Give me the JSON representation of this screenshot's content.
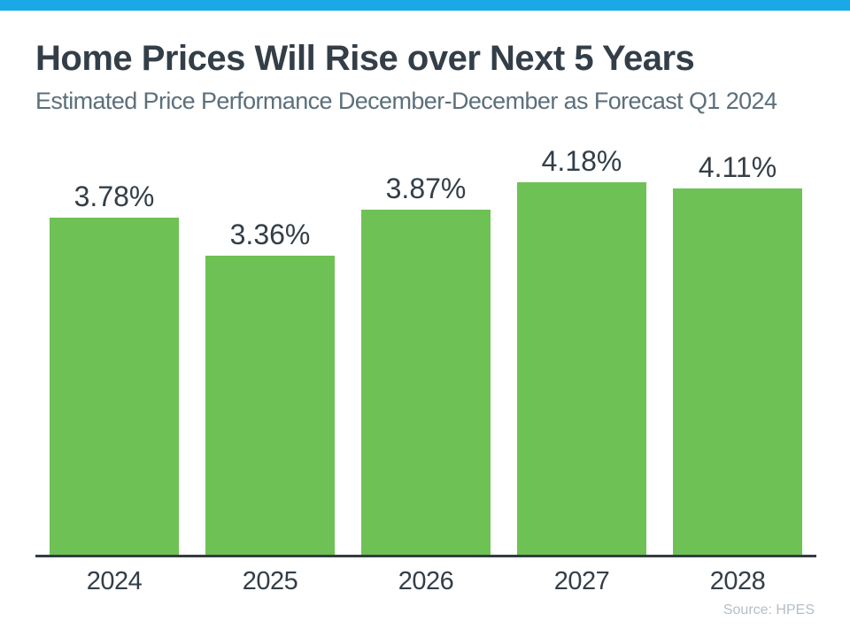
{
  "page": {
    "title": "Home Prices Will Rise over Next 5 Years",
    "subtitle": "Estimated Price Performance December-December as Forecast Q1 2024",
    "source": "Source: HPES"
  },
  "colors": {
    "accent_bar": "#18a9e6",
    "bar_fill": "#6ec154",
    "title_text": "#333e48",
    "subtitle_text": "#5c6f7b",
    "axis_line": "#333b43",
    "source_text": "#b4bec6"
  },
  "chart_data": {
    "type": "bar",
    "title": "Home Prices Will Rise over Next 5 Years",
    "subtitle": "Estimated Price Performance December-December as Forecast Q1 2024",
    "categories": [
      "2024",
      "2025",
      "2026",
      "2027",
      "2028"
    ],
    "values": [
      3.78,
      3.36,
      3.87,
      4.18,
      4.11
    ],
    "data_labels": [
      "3.78%",
      "3.36%",
      "3.87%",
      "4.18%",
      "4.11%"
    ],
    "xlabel": "",
    "ylabel": "",
    "ylim": [
      0,
      4.5
    ],
    "grid": false,
    "legend": false,
    "source": "Source: HPES"
  }
}
